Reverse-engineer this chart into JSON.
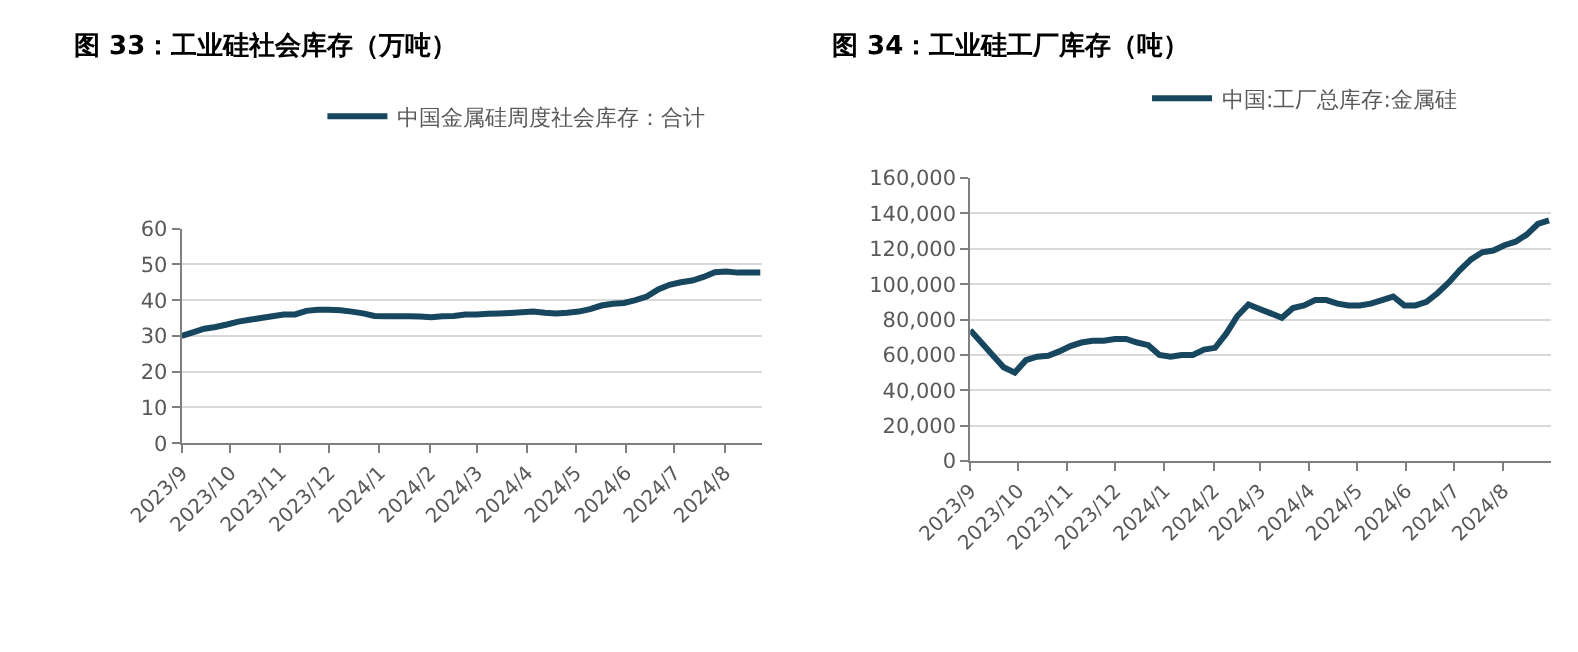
{
  "chart_data": [
    {
      "type": "line",
      "title": "图 33：工业硅社会库存（万吨）",
      "legend": "top",
      "grid": "y",
      "line_style": "solid",
      "marker": "none",
      "x": [
        "2023-09-01",
        "2023-09-08",
        "2023-09-15",
        "2023-09-22",
        "2023-09-29",
        "2023-10-06",
        "2023-10-13",
        "2023-10-20",
        "2023-10-27",
        "2023-11-03",
        "2023-11-10",
        "2023-11-17",
        "2023-11-24",
        "2023-12-01",
        "2023-12-08",
        "2023-12-15",
        "2023-12-22",
        "2023-12-29",
        "2024-01-05",
        "2024-01-12",
        "2024-01-19",
        "2024-01-26",
        "2024-02-02",
        "2024-02-09",
        "2024-02-16",
        "2024-02-23",
        "2024-03-01",
        "2024-03-08",
        "2024-03-15",
        "2024-03-22",
        "2024-03-29",
        "2024-04-05",
        "2024-04-12",
        "2024-04-19",
        "2024-04-26",
        "2024-05-03",
        "2024-05-10",
        "2024-05-17",
        "2024-05-24",
        "2024-05-31",
        "2024-06-07",
        "2024-06-14",
        "2024-06-21",
        "2024-06-28",
        "2024-07-05",
        "2024-07-12",
        "2024-07-19",
        "2024-07-26",
        "2024-08-02",
        "2024-08-09",
        "2024-08-16",
        "2024-08-23"
      ],
      "series": [
        {
          "name": "中国金属硅周度社会库存：合计",
          "color": "#17465f",
          "values": [
            30,
            31,
            32,
            32.5,
            33.2,
            34,
            34.5,
            35,
            35.5,
            36,
            36,
            37,
            37.3,
            37.3,
            37.2,
            36.8,
            36.3,
            35.6,
            35.5,
            35.5,
            35.5,
            35.4,
            35.2,
            35.5,
            35.6,
            36,
            36,
            36.2,
            36.3,
            36.4,
            36.6,
            36.8,
            36.5,
            36.3,
            36.5,
            36.8,
            37.5,
            38.5,
            39,
            39.2,
            40,
            41,
            43,
            44.3,
            45,
            45.5,
            46.5,
            47.8,
            48,
            47.7,
            47.7,
            47.7
          ]
        }
      ],
      "xlim": [
        "2023-09-01",
        "2024-08-24"
      ],
      "xticks": [
        {
          "value": "2023-09-01",
          "label": "2023/9"
        },
        {
          "value": "2023-10-01",
          "label": "2023/10"
        },
        {
          "value": "2023-11-01",
          "label": "2023/11"
        },
        {
          "value": "2023-12-01",
          "label": "2023/12"
        },
        {
          "value": "2024-01-01",
          "label": "2024/1"
        },
        {
          "value": "2024-02-01",
          "label": "2024/2"
        },
        {
          "value": "2024-03-01",
          "label": "2024/3"
        },
        {
          "value": "2024-04-01",
          "label": "2024/4"
        },
        {
          "value": "2024-05-01",
          "label": "2024/5"
        },
        {
          "value": "2024-06-01",
          "label": "2024/6"
        },
        {
          "value": "2024-07-01",
          "label": "2024/7"
        },
        {
          "value": "2024-08-01",
          "label": "2024/8"
        }
      ],
      "ylim": [
        0,
        60
      ],
      "yticks": [
        0,
        10,
        20,
        30,
        40,
        50,
        60
      ]
    },
    {
      "type": "line",
      "title": "图 34：工业硅工厂库存（吨）",
      "legend": "top",
      "grid": "y",
      "line_style": "solid",
      "marker": "none",
      "x": [
        "2023-09-01",
        "2023-09-08",
        "2023-09-15",
        "2023-09-22",
        "2023-09-29",
        "2023-10-06",
        "2023-10-13",
        "2023-10-20",
        "2023-10-27",
        "2023-11-03",
        "2023-11-10",
        "2023-11-17",
        "2023-11-24",
        "2023-12-01",
        "2023-12-08",
        "2023-12-15",
        "2023-12-22",
        "2023-12-29",
        "2024-01-05",
        "2024-01-12",
        "2024-01-19",
        "2024-01-26",
        "2024-02-02",
        "2024-02-09",
        "2024-02-16",
        "2024-02-23",
        "2024-03-01",
        "2024-03-08",
        "2024-03-15",
        "2024-03-22",
        "2024-03-29",
        "2024-04-05",
        "2024-04-12",
        "2024-04-19",
        "2024-04-26",
        "2024-05-03",
        "2024-05-10",
        "2024-05-17",
        "2024-05-24",
        "2024-05-31",
        "2024-06-07",
        "2024-06-14",
        "2024-06-21",
        "2024-06-28",
        "2024-07-05",
        "2024-07-12",
        "2024-07-19",
        "2024-07-26",
        "2024-08-02",
        "2024-08-09",
        "2024-08-16",
        "2024-08-23",
        "2024-08-30"
      ],
      "series": [
        {
          "name": "中国:工厂总库存:金属硅",
          "color": "#17465f",
          "values": [
            74000,
            67000,
            60000,
            53000,
            50000,
            57000,
            59000,
            59500,
            62000,
            65000,
            67000,
            68000,
            68000,
            69000,
            69000,
            67000,
            65500,
            60000,
            59000,
            60000,
            60000,
            63000,
            64000,
            72000,
            82000,
            88500,
            86000,
            83500,
            81000,
            86500,
            88000,
            91000,
            91000,
            89000,
            88000,
            88000,
            89000,
            91000,
            93000,
            88000,
            88000,
            90000,
            95000,
            101000,
            108000,
            114000,
            118000,
            119000,
            122000,
            124000,
            128000,
            134000,
            136000
          ]
        }
      ],
      "xlim": [
        "2023-09-01",
        "2024-08-31"
      ],
      "xticks": [
        {
          "value": "2023-09-01",
          "label": "2023/9"
        },
        {
          "value": "2023-10-01",
          "label": "2023/10"
        },
        {
          "value": "2023-11-01",
          "label": "2023/11"
        },
        {
          "value": "2023-12-01",
          "label": "2023/12"
        },
        {
          "value": "2024-01-01",
          "label": "2024/1"
        },
        {
          "value": "2024-02-01",
          "label": "2024/2"
        },
        {
          "value": "2024-03-01",
          "label": "2024/3"
        },
        {
          "value": "2024-04-01",
          "label": "2024/4"
        },
        {
          "value": "2024-05-01",
          "label": "2024/5"
        },
        {
          "value": "2024-06-01",
          "label": "2024/6"
        },
        {
          "value": "2024-07-01",
          "label": "2024/7"
        },
        {
          "value": "2024-08-01",
          "label": "2024/8"
        }
      ],
      "ylim": [
        0,
        160000
      ],
      "yticks": [
        {
          "value": 0,
          "label": "0"
        },
        {
          "value": 20000,
          "label": "20,000"
        },
        {
          "value": 40000,
          "label": "40,000"
        },
        {
          "value": 60000,
          "label": "60,000"
        },
        {
          "value": 80000,
          "label": "80,000"
        },
        {
          "value": 100000,
          "label": "100,000"
        },
        {
          "value": 120000,
          "label": "120,000"
        },
        {
          "value": 140000,
          "label": "140,000"
        },
        {
          "value": 160000,
          "label": "160,000"
        }
      ]
    }
  ]
}
